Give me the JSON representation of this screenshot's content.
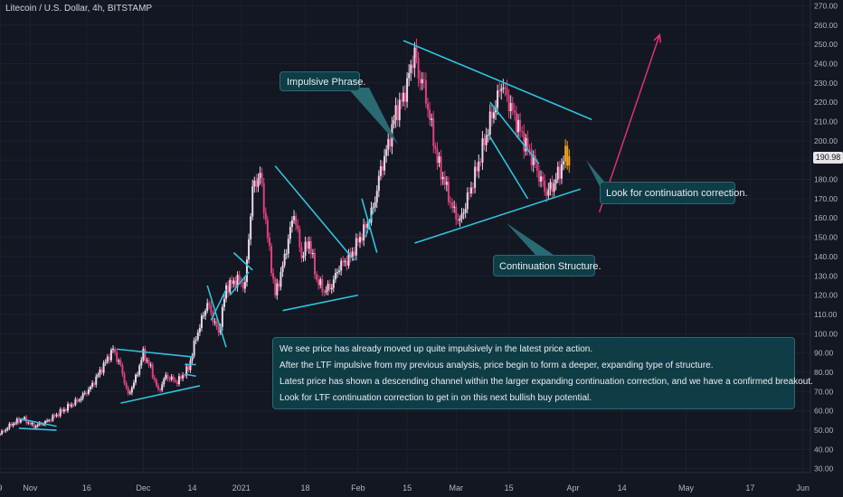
{
  "header": {
    "symbol_title": "Litecoin / U.S. Dollar, 4h, BITSTAMP"
  },
  "colors": {
    "background": "#131722",
    "grid": "#1c2030",
    "candle_up": "#e8d8e6",
    "candle_down": "#e0407a",
    "trendline": "#2ec4dc",
    "projection_arrow": "#e0306e",
    "annotation_bg": "#0f3d47",
    "annotation_border": "#2a6a72",
    "breakout_candles": "#f0a020"
  },
  "annotations": {
    "impulsive": "Impulsive Phrase.",
    "continuation": "Continuation  Structure.",
    "look_for": "Look for continuation correction.",
    "notes": [
      "We see price has already moved up quite impulsively in the latest price action.",
      "After the LTF impulsive from my previous analysis, price begin to form a deeper, expanding type of structure.",
      "Latest price has shown a descending channel within the larger expanding continuation correction, and we have a confirmed breakout.",
      "Look for LTF continuation correction to get in on this next bullish buy potential."
    ]
  },
  "current_price_label": "190.98",
  "chart_data": {
    "type": "line",
    "title": "Litecoin / U.S. Dollar, 4h, BITSTAMP",
    "xlabel": "",
    "ylabel": "",
    "x_tick_labels": [
      "9",
      "Nov",
      "16",
      "Dec",
      "14",
      "2021",
      "18",
      "Feb",
      "15",
      "Mar",
      "15",
      "Apr",
      "14",
      "May",
      "17",
      "Jun"
    ],
    "x_ticks_day_offset": [
      0,
      8,
      23,
      38,
      51,
      64,
      81,
      95,
      108,
      121,
      135,
      152,
      165,
      182,
      199,
      213
    ],
    "y_ticks": [
      30,
      40,
      50,
      60,
      70,
      80,
      90,
      100,
      110,
      120,
      130,
      140,
      150,
      160,
      170,
      180,
      190,
      200,
      210,
      220,
      230,
      240,
      250,
      260,
      270
    ],
    "ylim": [
      28,
      273
    ],
    "x_range_days": [
      0,
      215
    ],
    "grid": true,
    "price_path": [
      [
        0,
        48
      ],
      [
        3,
        53
      ],
      [
        6,
        56
      ],
      [
        9,
        52
      ],
      [
        12,
        54
      ],
      [
        15,
        58
      ],
      [
        18,
        62
      ],
      [
        21,
        66
      ],
      [
        24,
        72
      ],
      [
        27,
        82
      ],
      [
        30,
        92
      ],
      [
        32,
        83
      ],
      [
        34,
        68
      ],
      [
        36,
        77
      ],
      [
        38,
        90
      ],
      [
        40,
        82
      ],
      [
        42,
        70
      ],
      [
        44,
        78
      ],
      [
        47,
        75
      ],
      [
        50,
        82
      ],
      [
        52,
        98
      ],
      [
        55,
        116
      ],
      [
        58,
        100
      ],
      [
        60,
        124
      ],
      [
        63,
        128
      ],
      [
        65,
        125
      ],
      [
        67,
        175
      ],
      [
        69,
        183
      ],
      [
        71,
        150
      ],
      [
        73,
        120
      ],
      [
        75,
        135
      ],
      [
        78,
        163
      ],
      [
        80,
        140
      ],
      [
        82,
        148
      ],
      [
        84,
        128
      ],
      [
        86,
        122
      ],
      [
        88,
        125
      ],
      [
        90,
        135
      ],
      [
        93,
        140
      ],
      [
        95,
        148
      ],
      [
        97,
        155
      ],
      [
        99,
        165
      ],
      [
        101,
        185
      ],
      [
        103,
        198
      ],
      [
        105,
        215
      ],
      [
        107,
        222
      ],
      [
        109,
        238
      ],
      [
        110,
        247
      ],
      [
        111,
        233
      ],
      [
        112,
        232
      ],
      [
        114,
        212
      ],
      [
        116,
        190
      ],
      [
        118,
        178
      ],
      [
        120,
        165
      ],
      [
        122,
        158
      ],
      [
        124,
        170
      ],
      [
        126,
        182
      ],
      [
        128,
        196
      ],
      [
        130,
        210
      ],
      [
        132,
        222
      ],
      [
        133,
        230
      ],
      [
        135,
        220
      ],
      [
        137,
        210
      ],
      [
        139,
        200
      ],
      [
        141,
        192
      ],
      [
        143,
        182
      ],
      [
        145,
        173
      ],
      [
        147,
        178
      ],
      [
        149,
        187
      ],
      [
        150,
        193
      ],
      [
        151,
        191
      ]
    ],
    "breakout_candles_day_range": [
      150,
      152
    ],
    "trendlines": [
      {
        "from": [
          5,
          56
        ],
        "to": [
          15,
          52
        ]
      },
      {
        "from": [
          5,
          51
        ],
        "to": [
          15,
          50
        ]
      },
      {
        "from": [
          31,
          92
        ],
        "to": [
          51,
          88
        ]
      },
      {
        "from": [
          32,
          64
        ],
        "to": [
          53,
          73
        ]
      },
      {
        "from": [
          49,
          84
        ],
        "to": [
          52,
          84
        ]
      },
      {
        "from": [
          49,
          79
        ],
        "to": [
          52,
          78
        ]
      },
      {
        "from": [
          55,
          125
        ],
        "to": [
          60,
          93
        ]
      },
      {
        "from": [
          56,
          107
        ],
        "to": [
          60,
          123
        ]
      },
      {
        "from": [
          61,
          120
        ],
        "to": [
          66,
          132
        ]
      },
      {
        "from": [
          62,
          142
        ],
        "to": [
          67,
          133
        ]
      },
      {
        "from": [
          73,
          187
        ],
        "to": [
          94,
          138
        ]
      },
      {
        "from": [
          75,
          112
        ],
        "to": [
          95,
          120
        ]
      },
      {
        "from": [
          96,
          170
        ],
        "to": [
          100,
          142
        ]
      },
      {
        "from": [
          97,
          150
        ],
        "to": [
          99,
          164
        ]
      },
      {
        "from": [
          107,
          252
        ],
        "to": [
          157,
          211
        ]
      },
      {
        "from": [
          110,
          147
        ],
        "to": [
          154,
          175
        ]
      },
      {
        "from": [
          130,
          220
        ],
        "to": [
          143,
          188
        ]
      },
      {
        "from": [
          130,
          202
        ],
        "to": [
          140,
          170
        ]
      }
    ],
    "projection_arrow": {
      "from": [
        159,
        163
      ],
      "to": [
        175,
        255
      ]
    }
  }
}
